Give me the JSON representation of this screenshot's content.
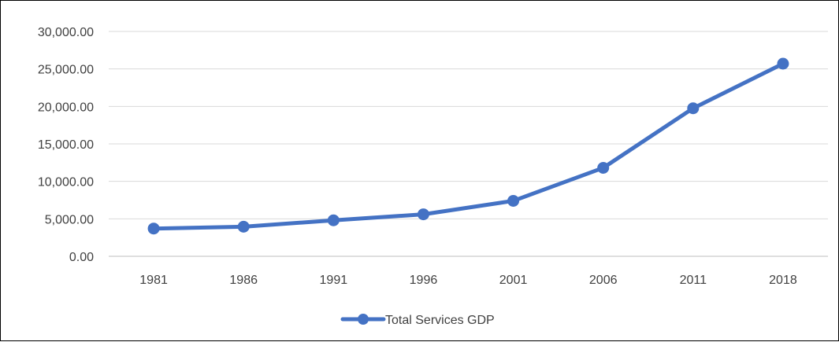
{
  "chart_data": {
    "type": "line",
    "title": "",
    "xlabel": "",
    "ylabel": "",
    "categories": [
      "1981",
      "1986",
      "1991",
      "1996",
      "2001",
      "2006",
      "2011",
      "2018"
    ],
    "series": [
      {
        "name": "Total Services GDP",
        "values": [
          3700,
          3950,
          4800,
          5600,
          7400,
          11800,
          19750,
          25700
        ],
        "color": "#4472C4"
      }
    ],
    "ylim": [
      0,
      30000
    ],
    "y_ticks": [
      "0.00",
      "5,000.00",
      "10,000.00",
      "15,000.00",
      "20,000.00",
      "25,000.00",
      "30,000.00"
    ],
    "y_tick_values": [
      0,
      5000,
      10000,
      15000,
      20000,
      25000,
      30000
    ],
    "grid": "horizontal",
    "legend_position": "bottom",
    "marker": "circle"
  }
}
